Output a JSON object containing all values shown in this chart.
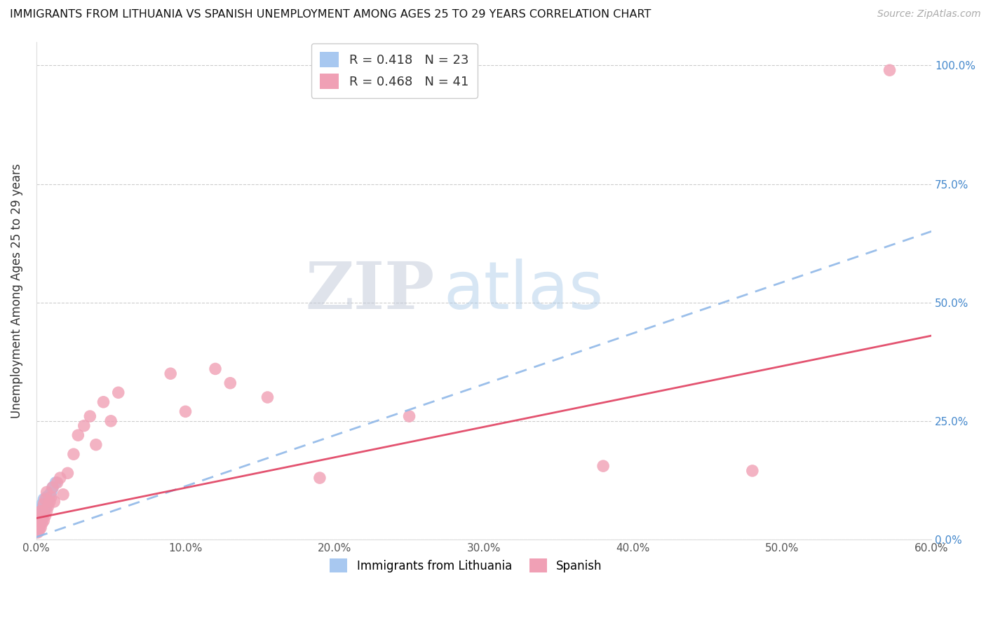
{
  "title": "IMMIGRANTS FROM LITHUANIA VS SPANISH UNEMPLOYMENT AMONG AGES 25 TO 29 YEARS CORRELATION CHART",
  "source": "Source: ZipAtlas.com",
  "ylabel": "Unemployment Among Ages 25 to 29 years",
  "xlim": [
    0.0,
    0.6
  ],
  "ylim": [
    0.0,
    1.05
  ],
  "xtick_vals": [
    0.0,
    0.1,
    0.2,
    0.3,
    0.4,
    0.5,
    0.6
  ],
  "xtick_labels": [
    "0.0%",
    "10.0%",
    "20.0%",
    "30.0%",
    "40.0%",
    "50.0%",
    "60.0%"
  ],
  "ytick_vals": [
    0.0,
    0.25,
    0.5,
    0.75,
    1.0
  ],
  "ytick_right_labels": [
    "0.0%",
    "25.0%",
    "50.0%",
    "75.0%",
    "100.0%"
  ],
  "blue_color": "#a8c8f0",
  "pink_color": "#f0a0b5",
  "blue_line_color": "#90b8e8",
  "pink_line_color": "#e04060",
  "legend_label1": "Immigrants from Lithuania",
  "legend_label2": "Spanish",
  "R1": "0.418",
  "N1": "23",
  "R2": "0.468",
  "N2": "41",
  "blue_x": [
    0.001,
    0.001,
    0.002,
    0.002,
    0.002,
    0.003,
    0.003,
    0.003,
    0.004,
    0.004,
    0.004,
    0.005,
    0.005,
    0.005,
    0.006,
    0.006,
    0.007,
    0.007,
    0.008,
    0.009,
    0.01,
    0.011,
    0.013
  ],
  "blue_y": [
    0.02,
    0.03,
    0.025,
    0.04,
    0.055,
    0.035,
    0.05,
    0.065,
    0.045,
    0.06,
    0.075,
    0.055,
    0.07,
    0.085,
    0.065,
    0.08,
    0.07,
    0.09,
    0.085,
    0.095,
    0.1,
    0.11,
    0.12
  ],
  "pink_x": [
    0.001,
    0.002,
    0.002,
    0.003,
    0.003,
    0.003,
    0.004,
    0.004,
    0.005,
    0.005,
    0.006,
    0.006,
    0.007,
    0.007,
    0.008,
    0.009,
    0.01,
    0.011,
    0.012,
    0.014,
    0.016,
    0.018,
    0.021,
    0.025,
    0.028,
    0.032,
    0.036,
    0.04,
    0.045,
    0.05,
    0.055,
    0.09,
    0.1,
    0.12,
    0.13,
    0.155,
    0.19,
    0.25,
    0.38,
    0.48,
    0.572
  ],
  "pink_y": [
    0.015,
    0.02,
    0.04,
    0.025,
    0.045,
    0.06,
    0.035,
    0.06,
    0.04,
    0.075,
    0.05,
    0.085,
    0.06,
    0.1,
    0.07,
    0.08,
    0.09,
    0.11,
    0.08,
    0.12,
    0.13,
    0.095,
    0.14,
    0.18,
    0.22,
    0.24,
    0.26,
    0.2,
    0.29,
    0.25,
    0.31,
    0.35,
    0.27,
    0.36,
    0.33,
    0.3,
    0.13,
    0.26,
    0.155,
    0.145,
    0.99
  ],
  "blue_trend_x0": 0.0,
  "blue_trend_y0": 0.005,
  "blue_trend_x1": 0.6,
  "blue_trend_y1": 0.65,
  "pink_trend_x0": 0.0,
  "pink_trend_y0": 0.045,
  "pink_trend_x1": 0.6,
  "pink_trend_y1": 0.43
}
